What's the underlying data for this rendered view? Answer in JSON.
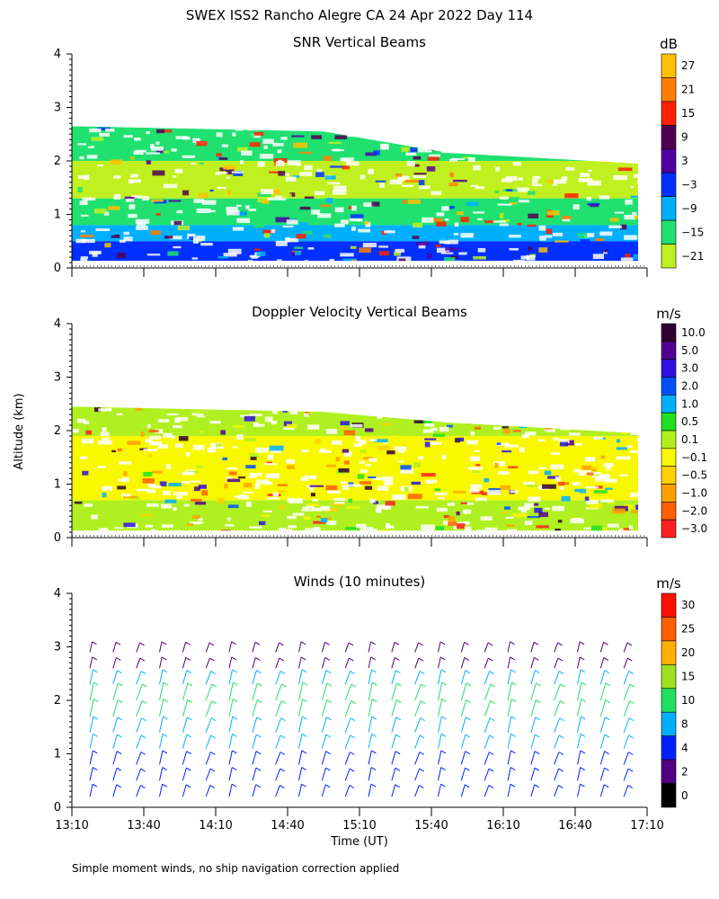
{
  "figure_title": "SWEX ISS2 Rancho Alegre CA  24 Apr 2022 Day 114",
  "footnote": "Simple moment winds, no ship navigation correction applied",
  "shared_axes": {
    "ylabel": "Altitude (km)",
    "xlabel": "Time (UT)",
    "x_ticks": [
      "13:10",
      "13:40",
      "14:10",
      "14:40",
      "15:10",
      "15:40",
      "16:10",
      "16:40",
      "17:10"
    ],
    "y_ticks": [
      "0",
      "1",
      "2",
      "3",
      "4"
    ]
  },
  "chart_data": [
    {
      "type": "heatmap",
      "title": "SNR Vertical Beams",
      "units": "dB",
      "x": [
        "13:10",
        "17:10"
      ],
      "ylim": [
        0,
        4
      ],
      "colorbar": {
        "labels": [
          "27",
          "21",
          "15",
          "9",
          "3",
          "−3",
          "−9",
          "−15",
          "−21"
        ],
        "colors": [
          "#ffc000",
          "#ff8000",
          "#ff2000",
          "#500050",
          "#5000a0",
          "#0030ff",
          "#00b0ff",
          "#20e070",
          "#c0f020"
        ]
      },
      "field": {
        "top_km_start": 2.65,
        "top_km_end": 1.95,
        "bottom_km": 0.13,
        "bands": [
          {
            "from_km": 0.13,
            "to_km": 0.5,
            "color": "#0030ff"
          },
          {
            "from_km": 0.5,
            "to_km": 0.8,
            "color": "#00b0ff"
          },
          {
            "from_km": 0.8,
            "to_km": 1.3,
            "color": "#20e070"
          },
          {
            "from_km": 1.3,
            "to_km": 2.0,
            "color": "#c0f020"
          },
          {
            "from_km": 2.0,
            "to_km": 2.65,
            "color": "#20e070"
          }
        ]
      }
    },
    {
      "type": "heatmap",
      "title": "Doppler Velocity Vertical Beams",
      "units": "m/s",
      "x": [
        "13:10",
        "17:10"
      ],
      "ylim": [
        0,
        4
      ],
      "colorbar": {
        "labels": [
          "10.0",
          "5.0",
          "3.0",
          "2.0",
          "1.0",
          "0.5",
          "0.1",
          "−0.1",
          "−0.5",
          "−1.0",
          "−2.0",
          "−3.0"
        ],
        "colors": [
          "#300030",
          "#500090",
          "#3010e0",
          "#0050ff",
          "#00b0ff",
          "#20e020",
          "#b0f020",
          "#f8f800",
          "#ffd000",
          "#ffa000",
          "#ff6000",
          "#ff2020"
        ]
      },
      "field": {
        "top_km_start": 2.45,
        "top_km_end": 1.95,
        "bottom_km": 0.13,
        "bands": [
          {
            "from_km": 0.13,
            "to_km": 0.7,
            "color": "#b0f020"
          },
          {
            "from_km": 0.7,
            "to_km": 1.9,
            "color": "#f8f800"
          },
          {
            "from_km": 1.9,
            "to_km": 2.45,
            "color": "#b0f020"
          }
        ]
      }
    },
    {
      "type": "scatter",
      "title": "Winds (10 minutes)",
      "units": "m/s",
      "x": [
        "13:10",
        "17:10"
      ],
      "ylim": [
        0,
        4
      ],
      "profile_count": 24,
      "colorbar": {
        "labels": [
          "30",
          "25",
          "20",
          "15",
          "10",
          "8",
          "4",
          "2",
          "0"
        ],
        "colors": [
          "#ff1000",
          "#ff6000",
          "#ffb000",
          "#a0e020",
          "#20e060",
          "#00b0ff",
          "#0020ff",
          "#500080",
          "#000000"
        ]
      },
      "wind_profile": [
        {
          "alt_km": 0.2,
          "speed_ms": 6,
          "color": "#0020ff"
        },
        {
          "alt_km": 0.5,
          "speed_ms": 7,
          "color": "#0020ff"
        },
        {
          "alt_km": 0.8,
          "speed_ms": 8,
          "color": "#0020ff"
        },
        {
          "alt_km": 1.1,
          "speed_ms": 9,
          "color": "#00b0ff"
        },
        {
          "alt_km": 1.4,
          "speed_ms": 11,
          "color": "#00b0ff"
        },
        {
          "alt_km": 1.7,
          "speed_ms": 13,
          "color": "#20e060"
        },
        {
          "alt_km": 2.0,
          "speed_ms": 14,
          "color": "#20e060"
        },
        {
          "alt_km": 2.3,
          "speed_ms": 9,
          "color": "#00b0ff"
        },
        {
          "alt_km": 2.6,
          "speed_ms": 4,
          "color": "#500080"
        },
        {
          "alt_km": 2.9,
          "speed_ms": 3,
          "color": "#500080"
        }
      ]
    }
  ]
}
